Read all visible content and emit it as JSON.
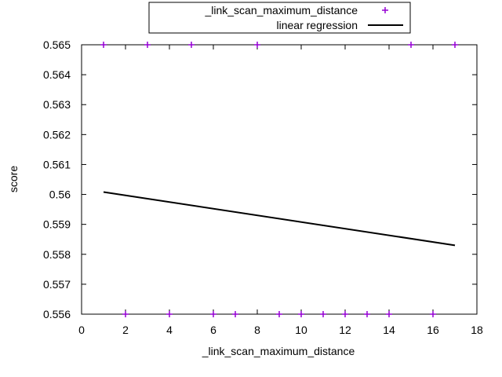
{
  "chart_data": {
    "type": "scatter",
    "title": "",
    "xlabel": "_link_scan_maximum_distance",
    "ylabel": "score",
    "xlim": [
      0,
      18
    ],
    "ylim": [
      0.556,
      0.565
    ],
    "x_ticks": [
      0,
      2,
      4,
      6,
      8,
      10,
      12,
      14,
      16,
      18
    ],
    "y_ticks": [
      0.556,
      0.557,
      0.558,
      0.559,
      0.56,
      0.561,
      0.562,
      0.563,
      0.564,
      0.565
    ],
    "x_tick_labels": [
      "0",
      "2",
      "4",
      "6",
      "8",
      "10",
      "12",
      "14",
      "16",
      "18"
    ],
    "y_tick_labels": [
      "0.556",
      "0.557",
      "0.558",
      "0.559",
      "0.56",
      "0.561",
      "0.562",
      "0.563",
      "0.564",
      "0.565"
    ],
    "grid": false,
    "legend_position": "top-center",
    "series": [
      {
        "name": "_link_scan_maximum_distance",
        "kind": "points",
        "marker": "plus",
        "color": "#9400d3",
        "points": [
          [
            1,
            0.565
          ],
          [
            2,
            0.556
          ],
          [
            3,
            0.565
          ],
          [
            4,
            0.556
          ],
          [
            5,
            0.565
          ],
          [
            6,
            0.556
          ],
          [
            7,
            0.556
          ],
          [
            8,
            0.565
          ],
          [
            9,
            0.556
          ],
          [
            10,
            0.556
          ],
          [
            11,
            0.556
          ],
          [
            12,
            0.556
          ],
          [
            13,
            0.556
          ],
          [
            14,
            0.556
          ],
          [
            15,
            0.565
          ],
          [
            16,
            0.556
          ],
          [
            17,
            0.565
          ]
        ]
      },
      {
        "name": "linear regression",
        "kind": "line",
        "color": "#000000",
        "points": [
          [
            1,
            0.56008
          ],
          [
            17,
            0.5583
          ]
        ]
      }
    ]
  }
}
